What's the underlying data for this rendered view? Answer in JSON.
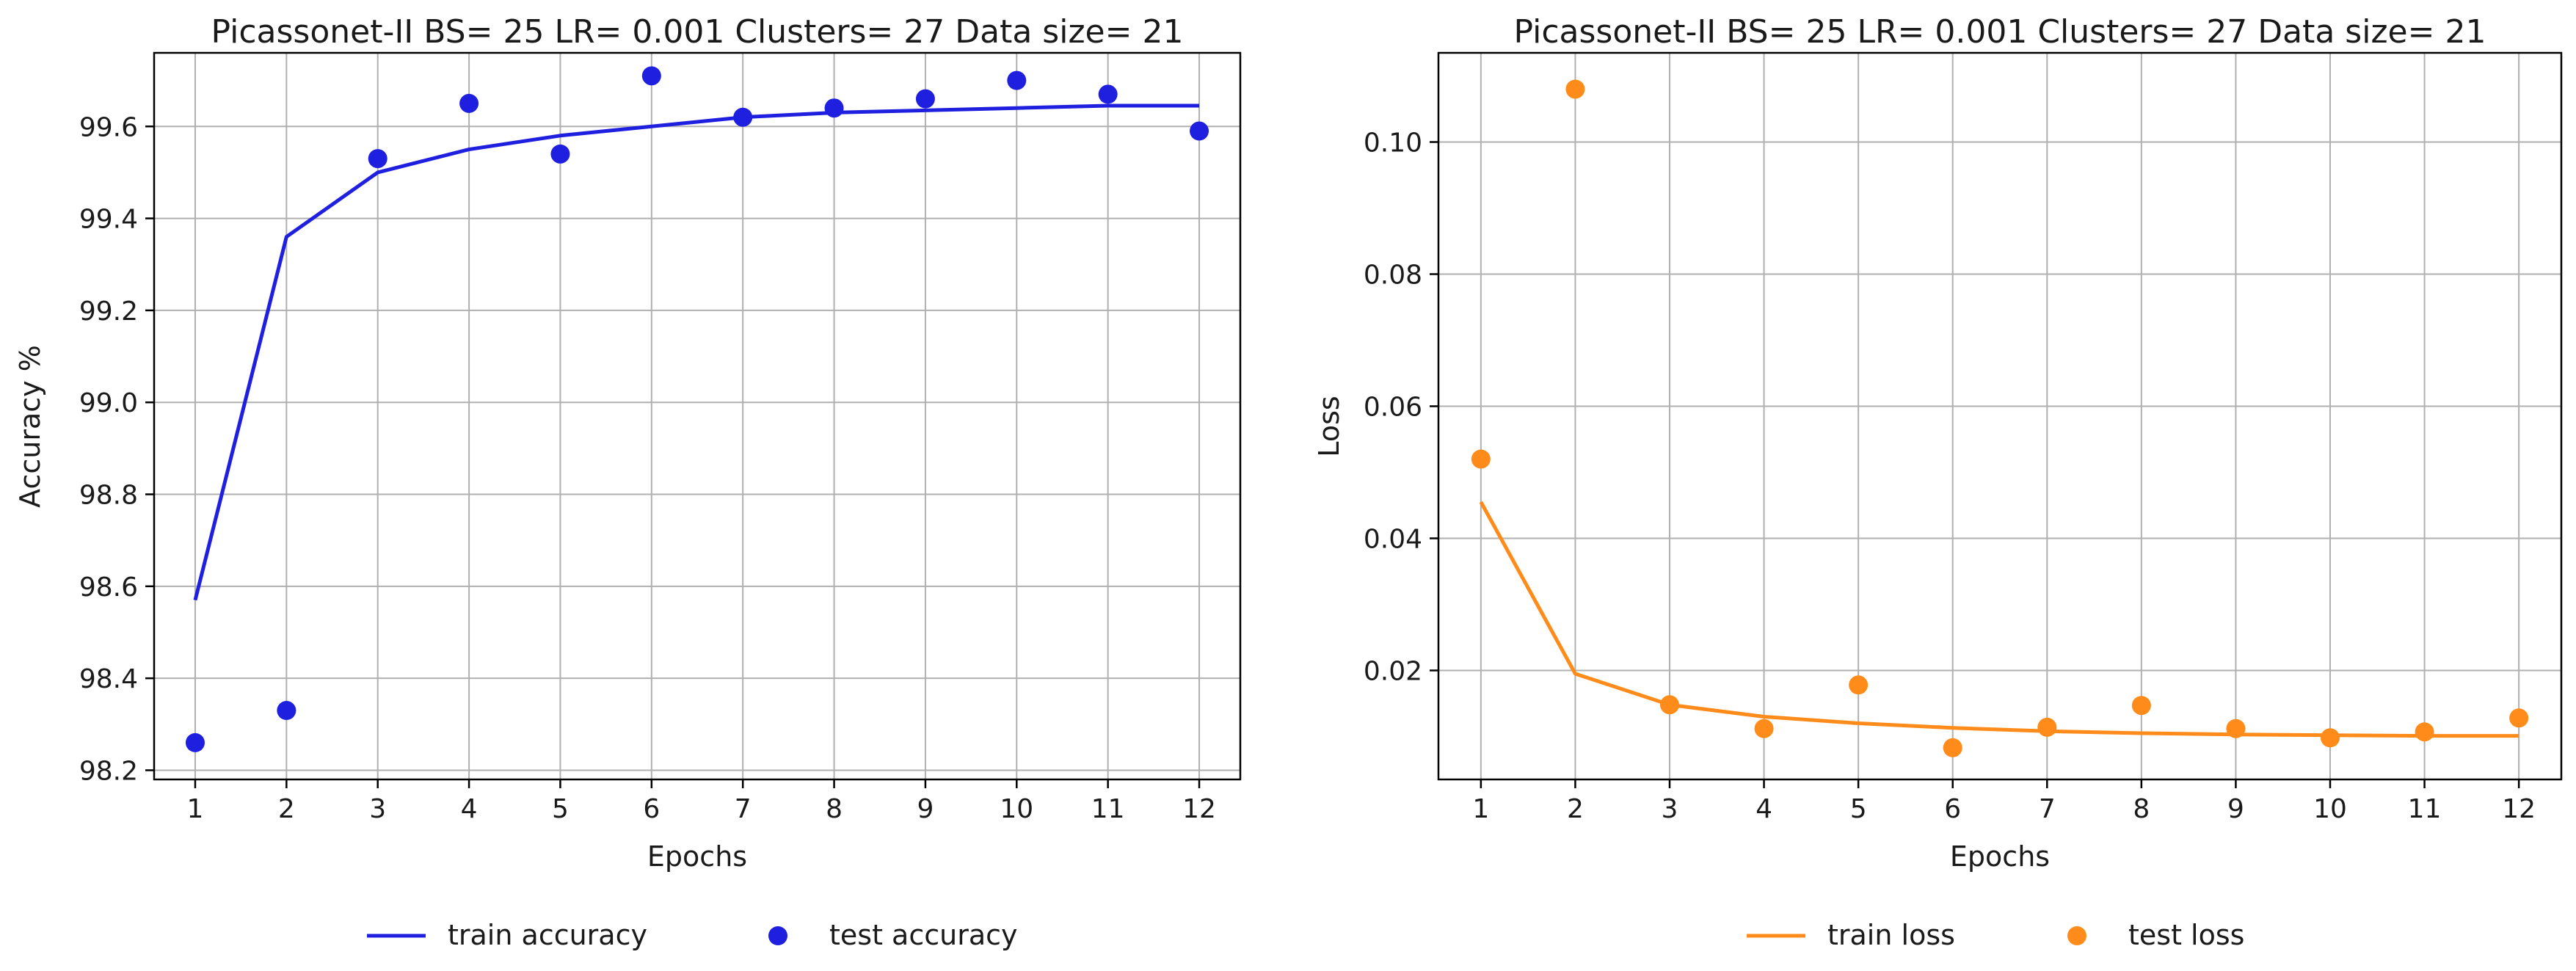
{
  "chart_data": [
    {
      "type": "line",
      "title": "Picassonet-II BS= 25 LR= 0.001 Clusters= 27 Data size= 21",
      "xlabel": "Epochs",
      "ylabel": "Accuracy %",
      "x": [
        1,
        2,
        3,
        4,
        5,
        6,
        7,
        8,
        9,
        10,
        11,
        12
      ],
      "xticks": [
        "1",
        "2",
        "3",
        "4",
        "5",
        "6",
        "7",
        "8",
        "9",
        "10",
        "11",
        "12"
      ],
      "xlim": [
        0.55,
        12.45
      ],
      "ylim": [
        98.18,
        99.76
      ],
      "yticks": [
        98.2,
        98.4,
        98.6,
        98.8,
        99.0,
        99.2,
        99.4,
        99.6
      ],
      "ytick_labels": [
        "98.2",
        "98.4",
        "98.6",
        "98.8",
        "99.0",
        "99.2",
        "99.4",
        "99.6"
      ],
      "grid": true,
      "legend_position": "below",
      "series": [
        {
          "name": "train accuracy",
          "style": "line",
          "color": "#1f1fe0",
          "values": [
            98.57,
            99.36,
            99.5,
            99.55,
            99.58,
            99.6,
            99.62,
            99.63,
            99.635,
            99.64,
            99.645,
            99.645
          ]
        },
        {
          "name": "test accuracy",
          "style": "scatter",
          "color": "#1f1fe0",
          "values": [
            98.26,
            98.33,
            99.53,
            99.65,
            99.54,
            99.71,
            99.62,
            99.64,
            99.66,
            99.7,
            99.67,
            99.59
          ]
        }
      ]
    },
    {
      "type": "line",
      "title": "Picassonet-II BS= 25 LR= 0.001 Clusters= 27 Data size= 21",
      "xlabel": "Epochs",
      "ylabel": "Loss",
      "x": [
        1,
        2,
        3,
        4,
        5,
        6,
        7,
        8,
        9,
        10,
        11,
        12
      ],
      "xticks": [
        "1",
        "2",
        "3",
        "4",
        "5",
        "6",
        "7",
        "8",
        "9",
        "10",
        "11",
        "12"
      ],
      "xlim": [
        0.55,
        12.45
      ],
      "ylim": [
        0.0035,
        0.1135
      ],
      "yticks": [
        0.02,
        0.04,
        0.06,
        0.08,
        0.1
      ],
      "ytick_labels": [
        "0.02",
        "0.04",
        "0.06",
        "0.08",
        "0.10"
      ],
      "grid": true,
      "legend_position": "below",
      "series": [
        {
          "name": "train loss",
          "style": "line",
          "color": "#ff8c1a",
          "values": [
            0.0455,
            0.0195,
            0.0148,
            0.013,
            0.012,
            0.0113,
            0.0108,
            0.0105,
            0.0103,
            0.0102,
            0.0101,
            0.0101
          ]
        },
        {
          "name": "test loss",
          "style": "scatter",
          "color": "#ff8c1a",
          "values": [
            0.052,
            0.108,
            0.0148,
            0.0112,
            0.0178,
            0.0083,
            0.0114,
            0.0147,
            0.0112,
            0.0098,
            0.0107,
            0.0128
          ]
        }
      ]
    }
  ]
}
